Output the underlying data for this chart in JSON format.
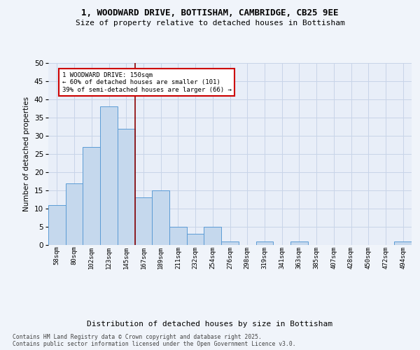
{
  "title_line1": "1, WOODWARD DRIVE, BOTTISHAM, CAMBRIDGE, CB25 9EE",
  "title_line2": "Size of property relative to detached houses in Bottisham",
  "xlabel": "Distribution of detached houses by size in Bottisham",
  "ylabel": "Number of detached properties",
  "categories": [
    "58sqm",
    "80sqm",
    "102sqm",
    "123sqm",
    "145sqm",
    "167sqm",
    "189sqm",
    "211sqm",
    "232sqm",
    "254sqm",
    "276sqm",
    "298sqm",
    "319sqm",
    "341sqm",
    "363sqm",
    "385sqm",
    "407sqm",
    "428sqm",
    "450sqm",
    "472sqm",
    "494sqm"
  ],
  "values": [
    11,
    17,
    27,
    38,
    32,
    13,
    15,
    5,
    3,
    5,
    1,
    0,
    1,
    0,
    1,
    0,
    0,
    0,
    0,
    0,
    1
  ],
  "bar_color": "#c5d8ed",
  "bar_edge_color": "#5b9bd5",
  "vline_x": 4.5,
  "vline_color": "#8b0000",
  "annotation_text": "1 WOODWARD DRIVE: 150sqm\n← 60% of detached houses are smaller (101)\n39% of semi-detached houses are larger (66) →",
  "annotation_box_color": "#ffffff",
  "annotation_box_edge_color": "#cc0000",
  "ylim": [
    0,
    50
  ],
  "yticks": [
    0,
    5,
    10,
    15,
    20,
    25,
    30,
    35,
    40,
    45,
    50
  ],
  "background_color": "#f0f4fa",
  "plot_bg_color": "#e8eef8",
  "grid_color": "#c8d4e8",
  "footer_line1": "Contains HM Land Registry data © Crown copyright and database right 2025.",
  "footer_line2": "Contains public sector information licensed under the Open Government Licence v3.0."
}
